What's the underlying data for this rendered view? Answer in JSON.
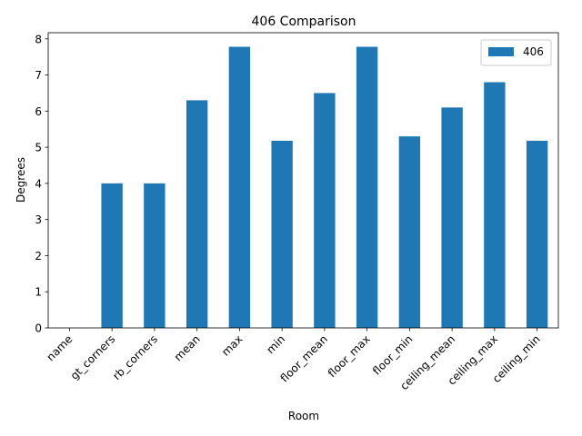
{
  "chart_data": {
    "type": "bar",
    "title": "406 Comparison",
    "xlabel": "Room",
    "ylabel": "Degrees",
    "categories": [
      "name",
      "gt_corners",
      "rb_corners",
      "mean",
      "max",
      "min",
      "floor_mean",
      "floor_max",
      "floor_min",
      "ceiling_mean",
      "ceiling_max",
      "ceiling_min"
    ],
    "series": [
      {
        "name": "406",
        "color": "#1f77b4",
        "values": [
          0,
          4.0,
          4.0,
          6.3,
          7.78,
          5.18,
          6.5,
          7.78,
          5.3,
          6.1,
          6.8,
          5.18
        ]
      }
    ],
    "ylim": [
      0,
      8.17
    ],
    "yticks": [
      0,
      1,
      2,
      3,
      4,
      5,
      6,
      7,
      8
    ],
    "grid": false,
    "legend": "top-right"
  }
}
